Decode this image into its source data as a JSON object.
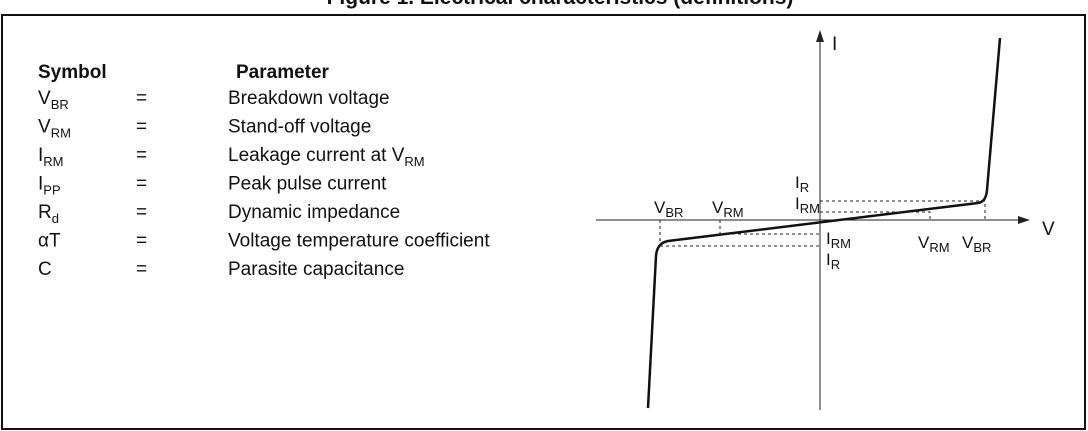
{
  "title": "Figure 1. Electrical characteristics (definitions)",
  "table": {
    "header": {
      "symbol": "Symbol",
      "parameter": "Parameter"
    },
    "rows": [
      {
        "symbol": "V",
        "symbol_sub": "BR",
        "equals": "=",
        "parameter": "Breakdown voltage"
      },
      {
        "symbol": "V",
        "symbol_sub": "RM",
        "equals": "=",
        "parameter": "Stand-off voltage"
      },
      {
        "symbol": "I",
        "symbol_sub": "RM",
        "equals": "=",
        "parameter": "Leakage current at V",
        "parameter_sub": "RM"
      },
      {
        "symbol": "I",
        "symbol_sub": "PP",
        "equals": "=",
        "parameter": "Peak pulse current"
      },
      {
        "symbol": "R",
        "symbol_sub": "d",
        "equals": "=",
        "parameter": "Dynamic impedance"
      },
      {
        "symbol": "αT",
        "equals": "=",
        "parameter": "Voltage temperature coefficient"
      },
      {
        "symbol": "C",
        "equals": "=",
        "parameter": "Parasite capacitance"
      }
    ]
  },
  "diagram": {
    "axis_i": "I",
    "axis_v": "V",
    "labels": [
      {
        "text": "V",
        "sub": "BR"
      },
      {
        "text": "V",
        "sub": "RM"
      },
      {
        "text": "I",
        "sub": "R"
      },
      {
        "text": "I",
        "sub": "RM"
      },
      {
        "text": "I",
        "sub": "RM"
      },
      {
        "text": "I",
        "sub": "R"
      },
      {
        "text": "V",
        "sub": "RM"
      },
      {
        "text": "V",
        "sub": "BR"
      }
    ]
  }
}
